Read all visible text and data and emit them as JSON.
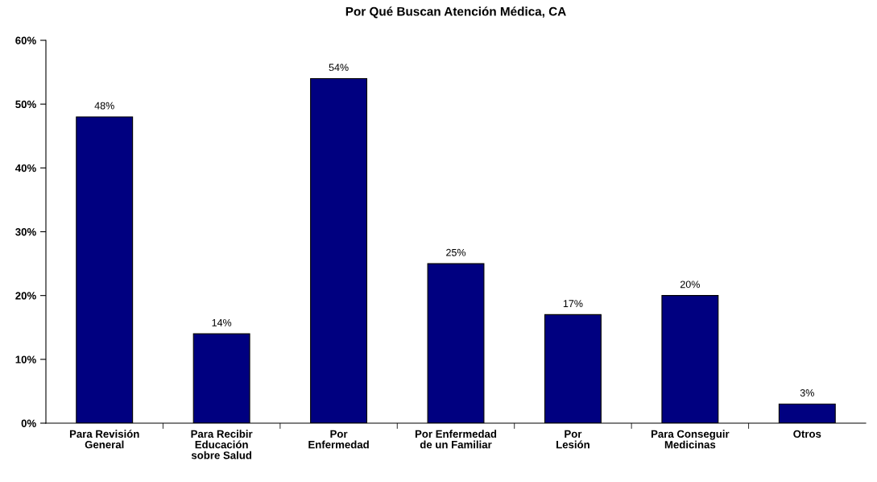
{
  "chart_data": {
    "type": "bar",
    "title": "Por Qué Buscan Atención Médica, CA",
    "categories": [
      "Para Revisión\nGeneral",
      "Para Recibir\nEducación\nsobre Salud",
      "Por\nEnfermedad",
      "Por Enfermedad\nde un Familiar",
      "Por\nLesión",
      "Para Conseguir\nMedicinas",
      "Otros"
    ],
    "values": [
      48,
      14,
      54,
      25,
      17,
      20,
      3
    ],
    "value_labels": [
      "48%",
      "14%",
      "54%",
      "25%",
      "17%",
      "20%",
      "3%"
    ],
    "color": "#000080",
    "ylim": [
      0,
      60
    ],
    "yticks": [
      {
        "value": 0,
        "label": "0%"
      },
      {
        "value": 10,
        "label": "10%"
      },
      {
        "value": 20,
        "label": "20%"
      },
      {
        "value": 30,
        "label": "30%"
      },
      {
        "value": 40,
        "label": "40%"
      },
      {
        "value": 50,
        "label": "50%"
      },
      {
        "value": 60,
        "label": "60%"
      }
    ],
    "grid": false,
    "legend": false
  }
}
